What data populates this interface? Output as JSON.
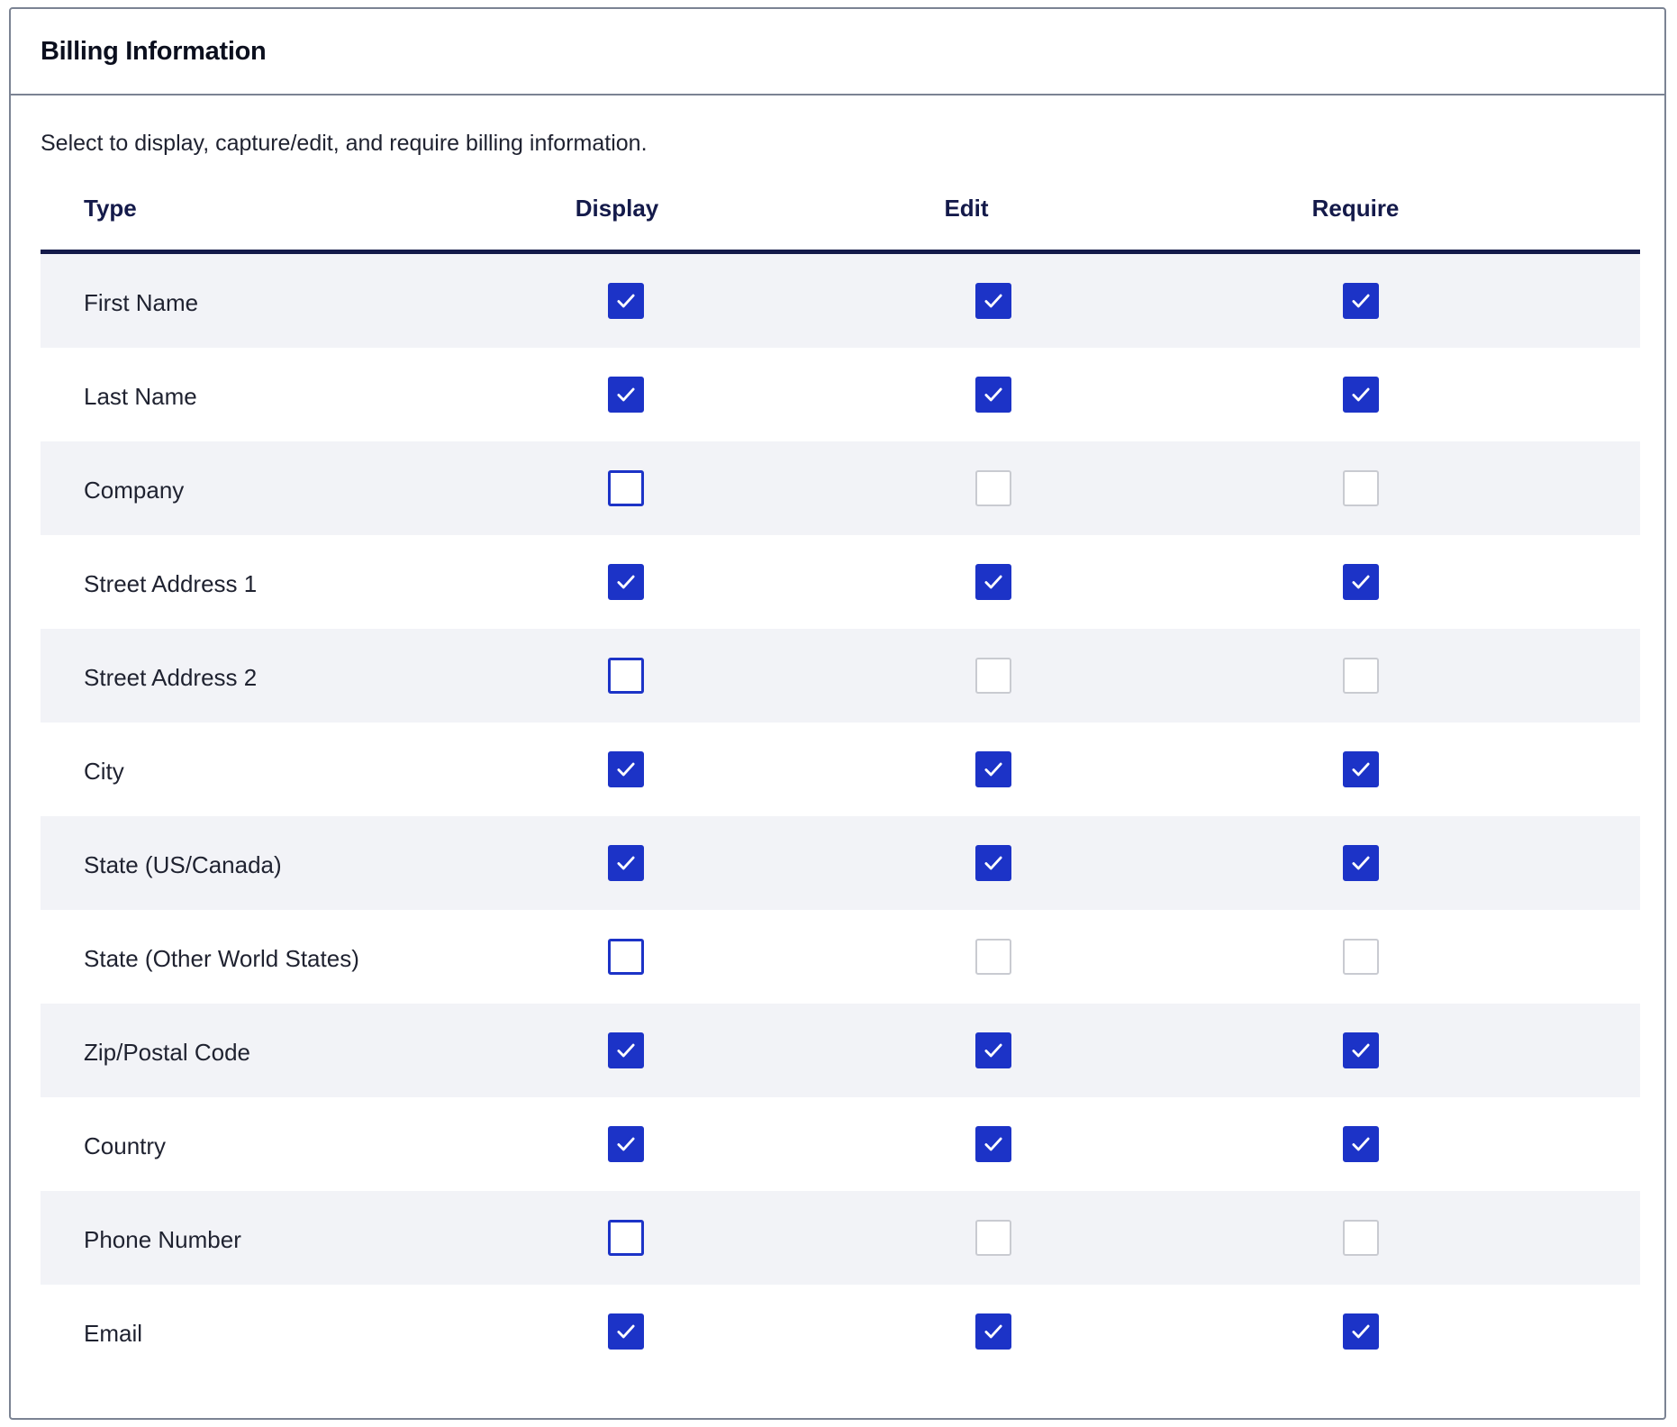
{
  "panel": {
    "title": "Billing Information",
    "description": "Select to display, capture/edit, and require billing information."
  },
  "table": {
    "headers": {
      "type": "Type",
      "display": "Display",
      "edit": "Edit",
      "require": "Require"
    },
    "rows": [
      {
        "label": "First Name",
        "display": "checked",
        "edit": "checked",
        "require": "checked"
      },
      {
        "label": "Last Name",
        "display": "checked",
        "edit": "checked",
        "require": "checked"
      },
      {
        "label": "Company",
        "display": "unchecked",
        "edit": "disabled",
        "require": "disabled"
      },
      {
        "label": "Street Address 1",
        "display": "checked",
        "edit": "checked",
        "require": "checked"
      },
      {
        "label": "Street Address 2",
        "display": "unchecked",
        "edit": "disabled",
        "require": "disabled"
      },
      {
        "label": "City",
        "display": "checked",
        "edit": "checked",
        "require": "checked"
      },
      {
        "label": "State (US/Canada)",
        "display": "checked",
        "edit": "checked",
        "require": "checked"
      },
      {
        "label": "State (Other World States)",
        "display": "unchecked",
        "edit": "disabled",
        "require": "disabled"
      },
      {
        "label": "Zip/Postal Code",
        "display": "checked",
        "edit": "checked",
        "require": "checked"
      },
      {
        "label": "Country",
        "display": "checked",
        "edit": "checked",
        "require": "checked"
      },
      {
        "label": "Phone Number",
        "display": "unchecked",
        "edit": "disabled",
        "require": "disabled"
      },
      {
        "label": "Email",
        "display": "checked",
        "edit": "checked",
        "require": "checked"
      }
    ]
  },
  "colors": {
    "accent": "#1c33c7",
    "header_rule": "#141a4a",
    "row_shade": "#f2f3f7",
    "disabled_border": "#c9cbd1",
    "panel_border": "#7b8393"
  },
  "icons": {
    "checkmark": "checkmark-icon"
  }
}
